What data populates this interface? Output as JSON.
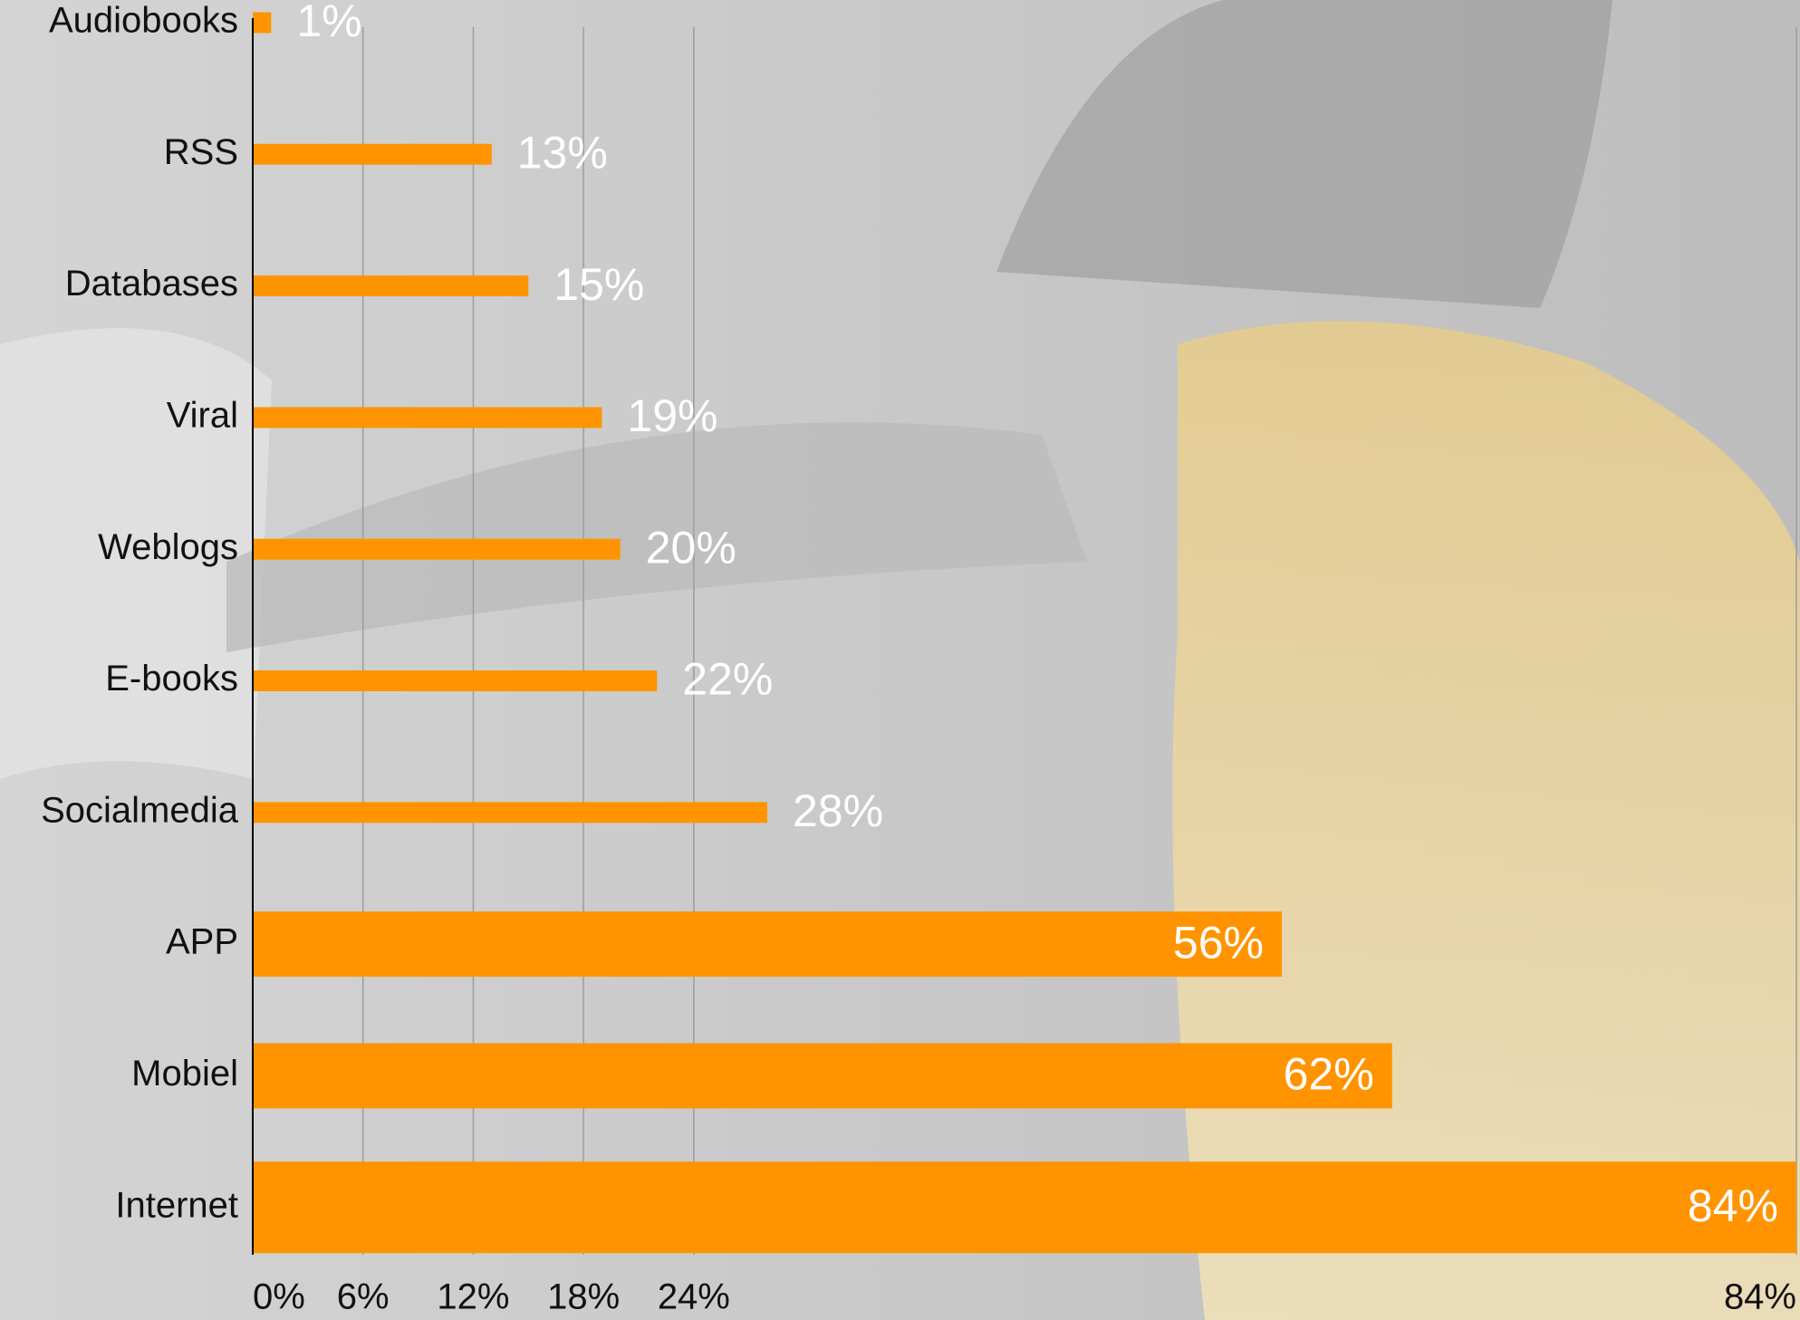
{
  "chart_data": {
    "type": "barh",
    "categories": [
      "Audiobooks",
      "RSS",
      "Databases",
      "Viral",
      "Weblogs",
      "E-books",
      "Socialmedia",
      "APP",
      "Mobiel",
      "Internet"
    ],
    "values": [
      1,
      13,
      15,
      19,
      20,
      22,
      28,
      56,
      62,
      84
    ],
    "value_labels": [
      "1%",
      "13%",
      "15%",
      "19%",
      "20%",
      "22%",
      "28%",
      "56%",
      "62%",
      "84%"
    ],
    "color": "#ff9400",
    "xlim": [
      0,
      84
    ],
    "xticks": [
      {
        "value": 0,
        "label": "0%"
      },
      {
        "value": 6,
        "label": "6%"
      },
      {
        "value": 12,
        "label": "12%"
      },
      {
        "value": 18,
        "label": "18%"
      },
      {
        "value": 24,
        "label": "24%"
      },
      {
        "value": 84,
        "label": "84%"
      }
    ],
    "grid": true
  }
}
